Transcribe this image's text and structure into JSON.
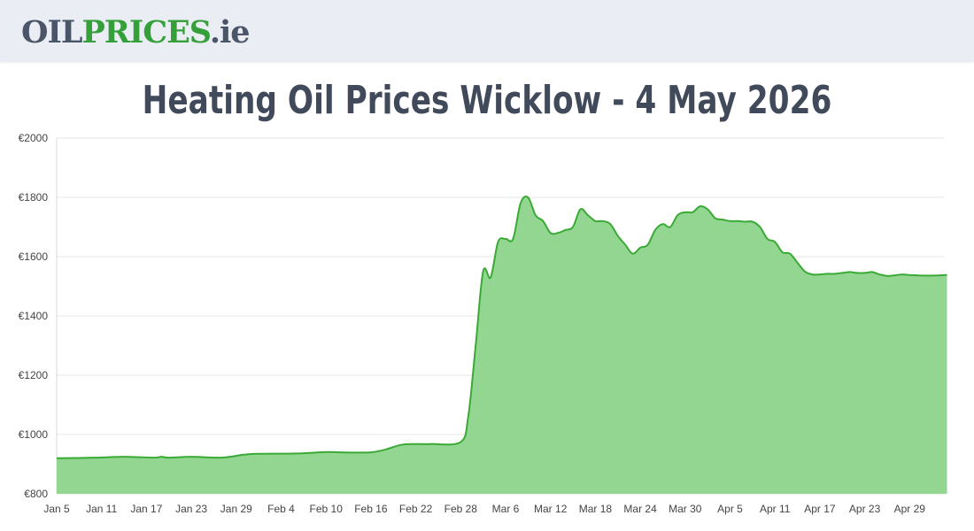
{
  "header": {
    "logo_part1": "OIL",
    "logo_part2": "PRICES",
    "logo_part3": ".ie"
  },
  "page_title": "Heating Oil Prices Wicklow - 4 May 2026",
  "chart_data": {
    "type": "area",
    "title": "Heating Oil Prices Wicklow - 4 May 2026",
    "xlabel": "",
    "ylabel": "",
    "ylim": [
      800,
      2000
    ],
    "y_ticks": [
      800,
      1000,
      1200,
      1400,
      1600,
      1800,
      2000
    ],
    "y_tick_labels": [
      "€800",
      "€1000",
      "€1200",
      "€1400",
      "€1600",
      "€1800",
      "€2000"
    ],
    "x_tick_labels": [
      "Jan 5",
      "Jan 11",
      "Jan 17",
      "Jan 23",
      "Jan 29",
      "Feb 4",
      "Feb 10",
      "Feb 16",
      "Feb 22",
      "Feb 28",
      "Mar 6",
      "Mar 12",
      "Mar 18",
      "Mar 24",
      "Mar 30",
      "Apr 5",
      "Apr 11",
      "Apr 17",
      "Apr 23",
      "Apr 29"
    ],
    "grid": true,
    "colors": {
      "line": "#3aaa35",
      "fill": "#92d692",
      "grid": "#e6e6e6"
    },
    "series": [
      {
        "x": [
          "2026-01-05",
          "2026-01-10",
          "2026-01-14",
          "2026-01-18",
          "2026-01-19",
          "2026-01-20",
          "2026-01-23",
          "2026-01-27",
          "2026-01-30",
          "2026-02-01",
          "2026-02-06",
          "2026-02-10",
          "2026-02-12",
          "2026-02-16",
          "2026-02-18",
          "2026-02-20",
          "2026-02-22",
          "2026-02-24",
          "2026-02-28",
          "2026-03-01",
          "2026-03-02",
          "2026-03-03",
          "2026-03-04",
          "2026-03-05",
          "2026-03-06",
          "2026-03-07",
          "2026-03-08",
          "2026-03-09",
          "2026-03-10",
          "2026-03-11",
          "2026-03-12",
          "2026-03-13",
          "2026-03-14",
          "2026-03-15",
          "2026-03-16",
          "2026-03-17",
          "2026-03-18",
          "2026-03-19",
          "2026-03-20",
          "2026-03-21",
          "2026-03-22",
          "2026-03-23",
          "2026-03-24",
          "2026-03-25",
          "2026-03-26",
          "2026-03-27",
          "2026-03-28",
          "2026-03-29",
          "2026-03-30",
          "2026-03-31",
          "2026-04-01",
          "2026-04-02",
          "2026-04-03",
          "2026-04-04",
          "2026-04-05",
          "2026-04-06",
          "2026-04-07",
          "2026-04-08",
          "2026-04-09",
          "2026-04-10",
          "2026-04-11",
          "2026-04-12",
          "2026-04-13",
          "2026-04-14",
          "2026-04-15",
          "2026-04-16",
          "2026-04-17",
          "2026-04-18",
          "2026-04-19",
          "2026-04-20",
          "2026-04-21",
          "2026-04-22",
          "2026-04-23",
          "2026-04-24",
          "2026-04-25",
          "2026-04-26",
          "2026-04-27",
          "2026-04-28",
          "2026-04-29",
          "2026-04-30",
          "2026-05-01",
          "2026-05-02",
          "2026-05-03",
          "2026-05-04"
        ],
        "values": [
          920,
          922,
          925,
          922,
          925,
          922,
          925,
          922,
          932,
          935,
          936,
          941,
          940,
          940,
          950,
          965,
          968,
          968,
          975,
          1060,
          1300,
          1550,
          1530,
          1650,
          1660,
          1660,
          1780,
          1800,
          1740,
          1720,
          1680,
          1680,
          1690,
          1700,
          1760,
          1740,
          1720,
          1720,
          1710,
          1670,
          1640,
          1610,
          1630,
          1640,
          1690,
          1710,
          1700,
          1740,
          1750,
          1750,
          1770,
          1760,
          1730,
          1725,
          1720,
          1720,
          1718,
          1718,
          1700,
          1660,
          1650,
          1615,
          1610,
          1580,
          1550,
          1540,
          1540,
          1542,
          1542,
          1545,
          1548,
          1545,
          1545,
          1548,
          1540,
          1535,
          1537,
          1540,
          1538,
          1537,
          1536,
          1536,
          1537,
          1538
        ]
      }
    ]
  }
}
